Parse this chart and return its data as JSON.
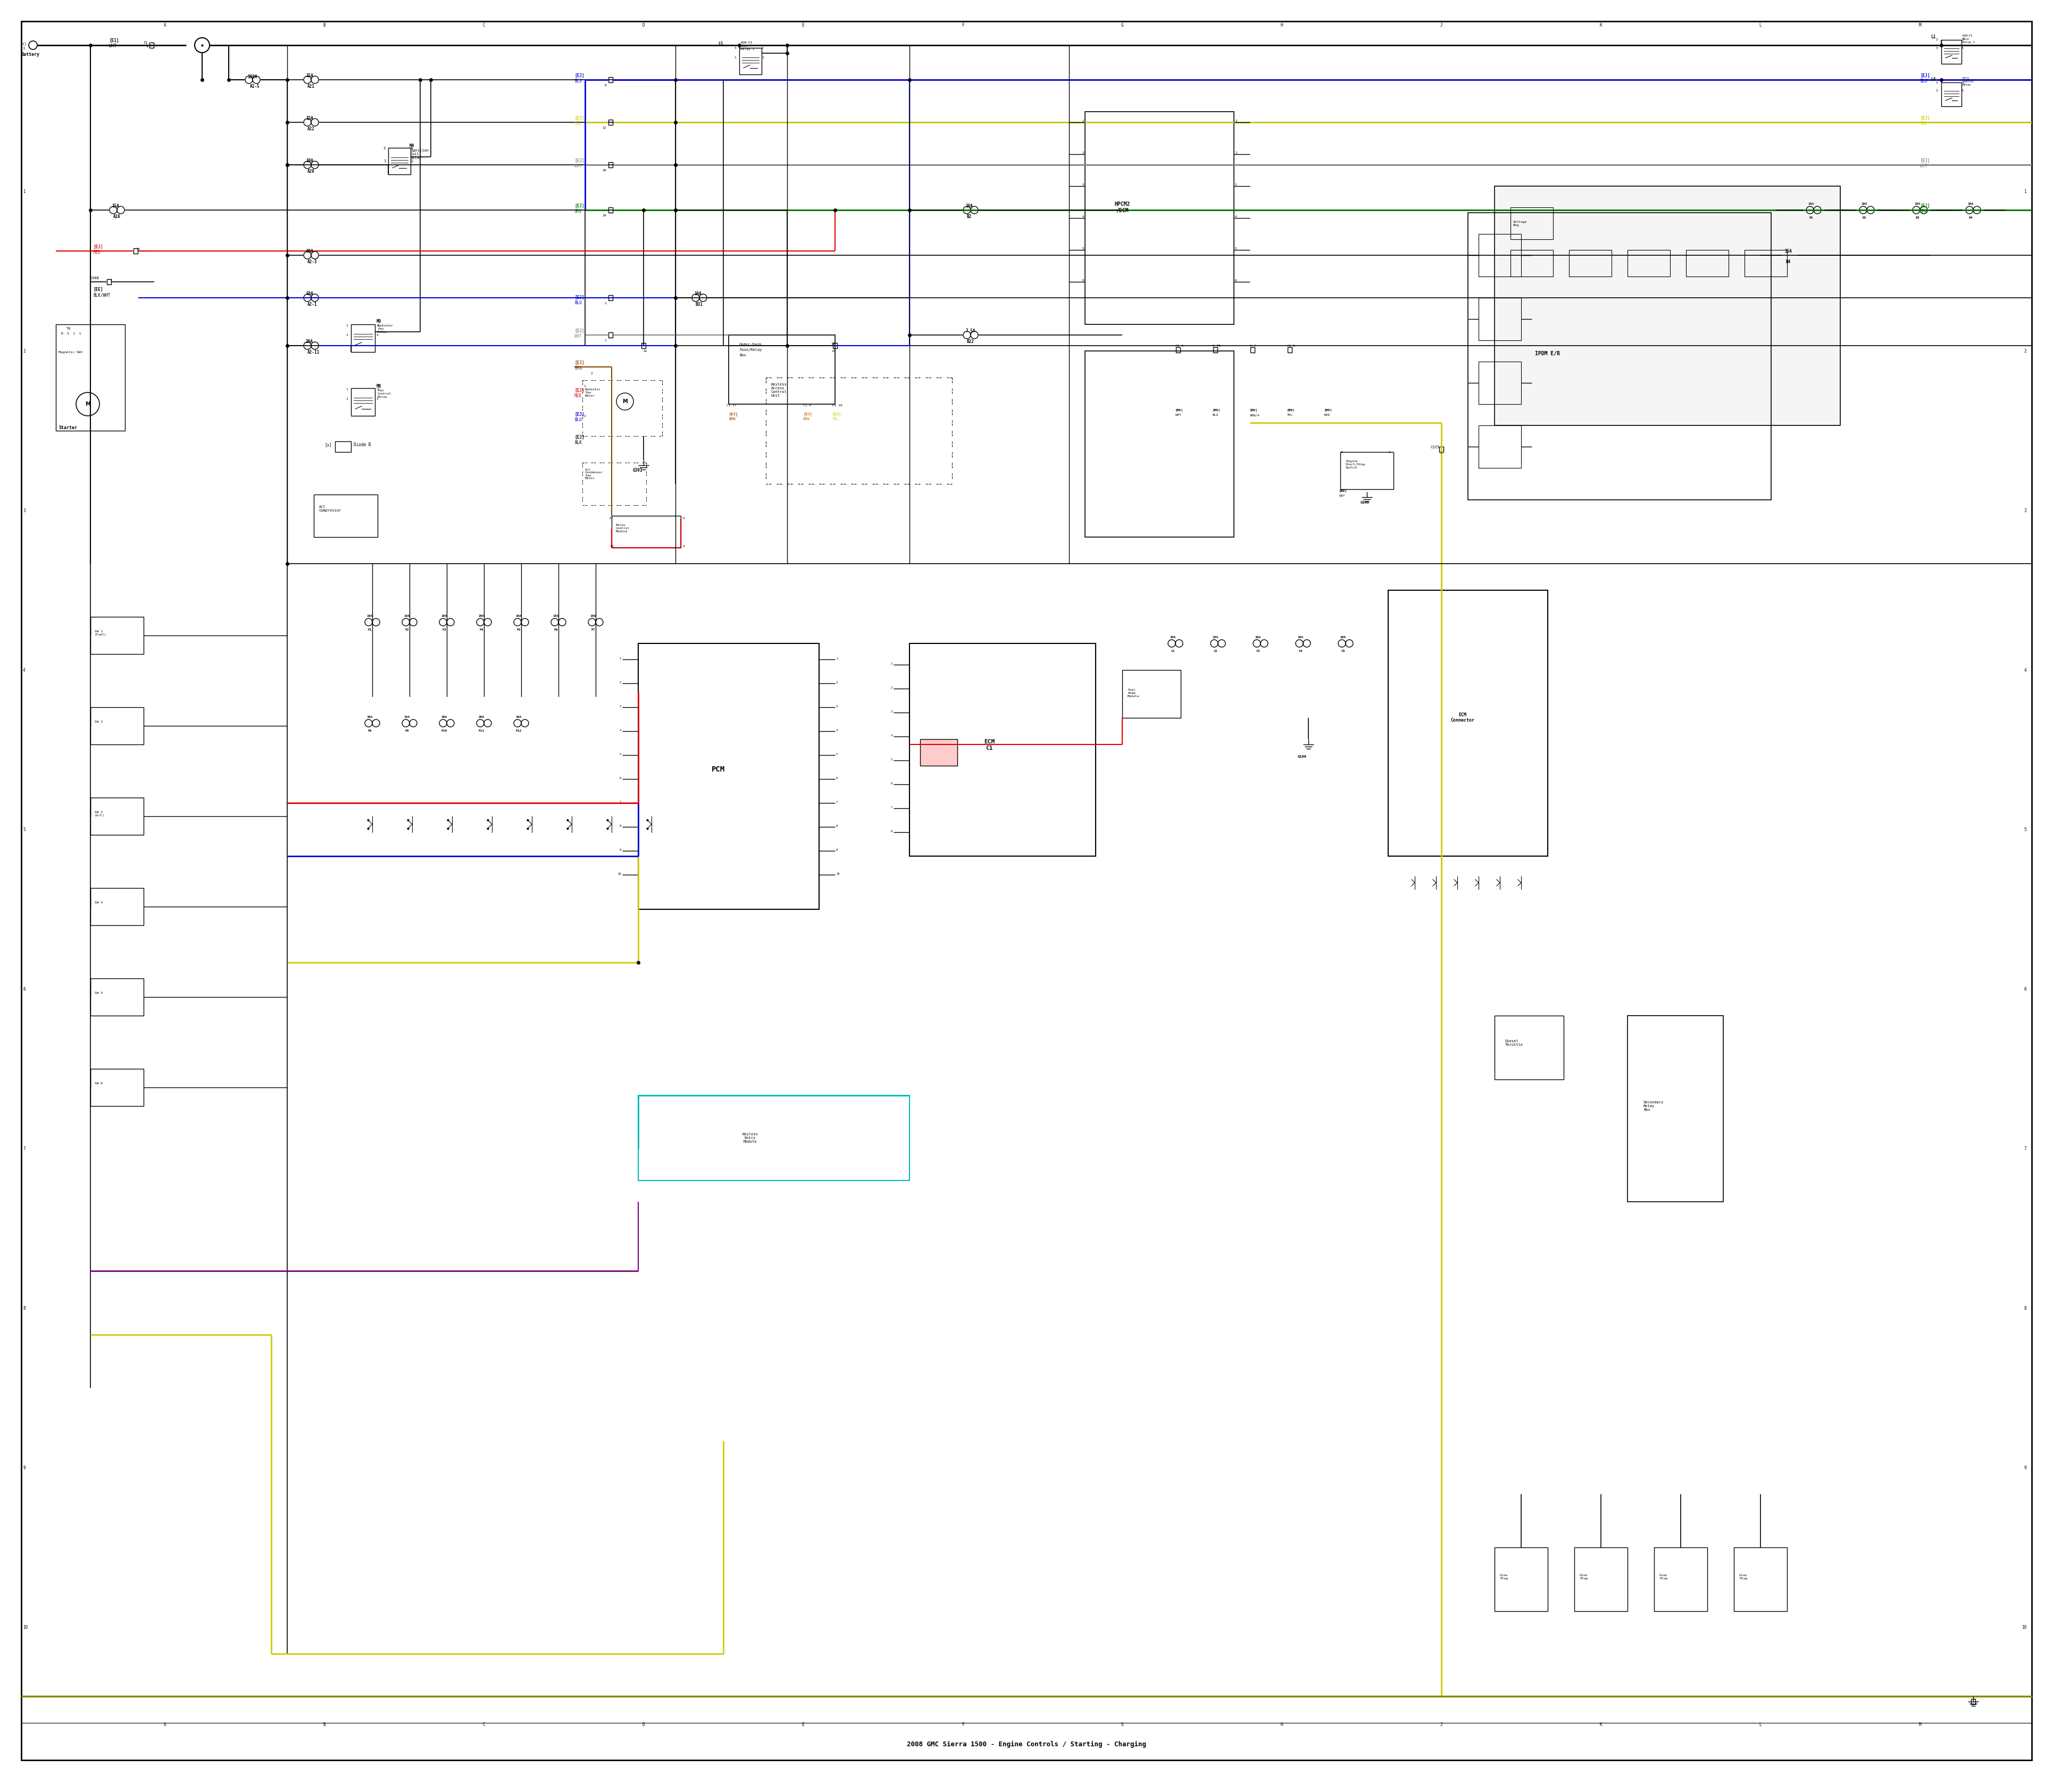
{
  "background": "#ffffff",
  "colors": {
    "black": "#000000",
    "red": "#dd0000",
    "blue": "#0000dd",
    "yellow": "#cccc00",
    "green": "#007700",
    "cyan": "#00bbbb",
    "gray": "#888888",
    "purple": "#770077",
    "olive": "#888800",
    "brown": "#884400",
    "orange": "#cc6600"
  },
  "fig_width": 38.4,
  "fig_height": 33.5
}
